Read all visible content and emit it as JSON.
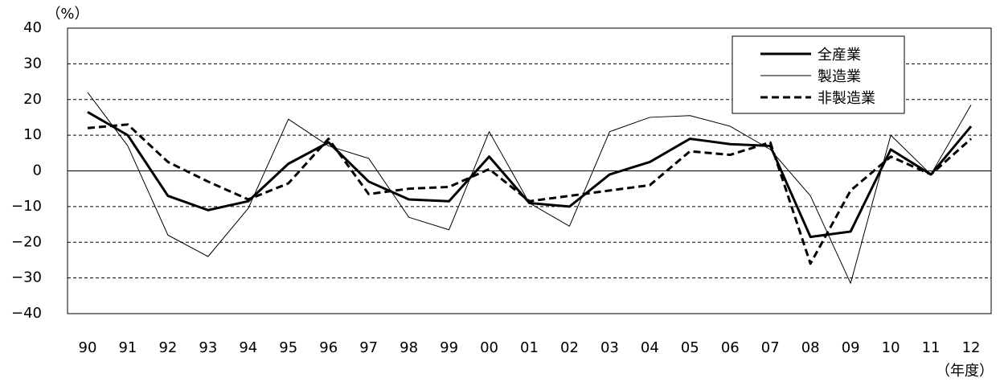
{
  "chart_data": {
    "type": "line",
    "y_unit_label": "（%）",
    "x_unit_label": "（年度）",
    "categories": [
      "90",
      "91",
      "92",
      "93",
      "94",
      "95",
      "96",
      "97",
      "98",
      "99",
      "00",
      "01",
      "02",
      "03",
      "04",
      "05",
      "06",
      "07",
      "08",
      "09",
      "10",
      "11",
      "12"
    ],
    "series": [
      {
        "name": "全産業",
        "color": "#000000",
        "line_width": 3,
        "style": "solid",
        "values": [
          16.5,
          10,
          -7,
          -11,
          -8.5,
          2,
          8,
          -3,
          -8,
          -8.5,
          4,
          -9,
          -10,
          -1,
          2.5,
          9,
          7.5,
          7,
          -18.5,
          -17,
          6,
          -1,
          12.5
        ]
      },
      {
        "name": "製造業",
        "color": "#000000",
        "line_width": 1,
        "style": "solid",
        "values": [
          22,
          7,
          -18,
          -24,
          -10.5,
          14.5,
          7,
          3.5,
          -13,
          -16.5,
          11,
          -9,
          -15.5,
          11,
          15,
          15.5,
          12.5,
          6,
          -7,
          -31.5,
          10,
          -1,
          18.5
        ]
      },
      {
        "name": "非製造業",
        "color": "#000000",
        "line_width": 3,
        "style": "dashed",
        "values": [
          12,
          13,
          2.5,
          -3,
          -8,
          -3.5,
          9,
          -6.5,
          -5,
          -4.5,
          0.5,
          -8.5,
          -7,
          -5.5,
          -4,
          5.5,
          4.5,
          8,
          -26,
          -5.5,
          4,
          -1,
          9
        ]
      }
    ],
    "ylim": [
      -40,
      40
    ],
    "yticks": [
      {
        "value": -40,
        "label": "−40"
      },
      {
        "value": -30,
        "label": "−30"
      },
      {
        "value": -20,
        "label": "−20"
      },
      {
        "value": -10,
        "label": "−10"
      },
      0,
      10,
      20,
      30,
      40
    ],
    "grid": true,
    "legend": "top-right"
  }
}
